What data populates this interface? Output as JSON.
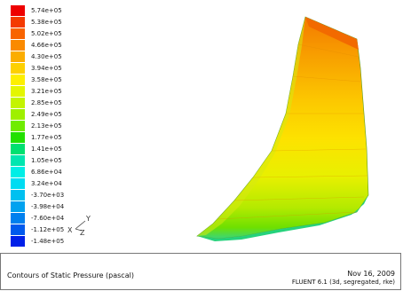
{
  "legend": {
    "colors": [
      "#ee0000",
      "#f43a00",
      "#f86400",
      "#fa8a00",
      "#fbad00",
      "#fdd000",
      "#fdef00",
      "#e4f600",
      "#c4f400",
      "#9ff000",
      "#6fec00",
      "#22e000",
      "#00e070",
      "#00e6b0",
      "#00eee6",
      "#00dcf2",
      "#00c0f0",
      "#00a2ef",
      "#0080ee",
      "#005aed",
      "#0020e8"
    ],
    "labels": [
      "5.74e+05",
      "5.38e+05",
      "5.02e+05",
      "4.66e+05",
      "4.30e+05",
      "3.94e+05",
      "3.58e+05",
      "3.21e+05",
      "2.85e+05",
      "2.49e+05",
      "2.13e+05",
      "1.77e+05",
      "1.41e+05",
      "1.05e+05",
      "6.86e+04",
      "3.24e+04",
      "-3.70e+03",
      "-3.98e+04",
      "-7.60e+04",
      "-1.12e+05",
      "-1.48e+05"
    ]
  },
  "axes": {
    "x": "X",
    "y": "Y",
    "z": "Z"
  },
  "caption": {
    "title": "Contours of Static Pressure (pascal)",
    "date": "Nov 16, 2009",
    "solver": "FLUENT 6.1 (3d, segregated, rke)"
  }
}
